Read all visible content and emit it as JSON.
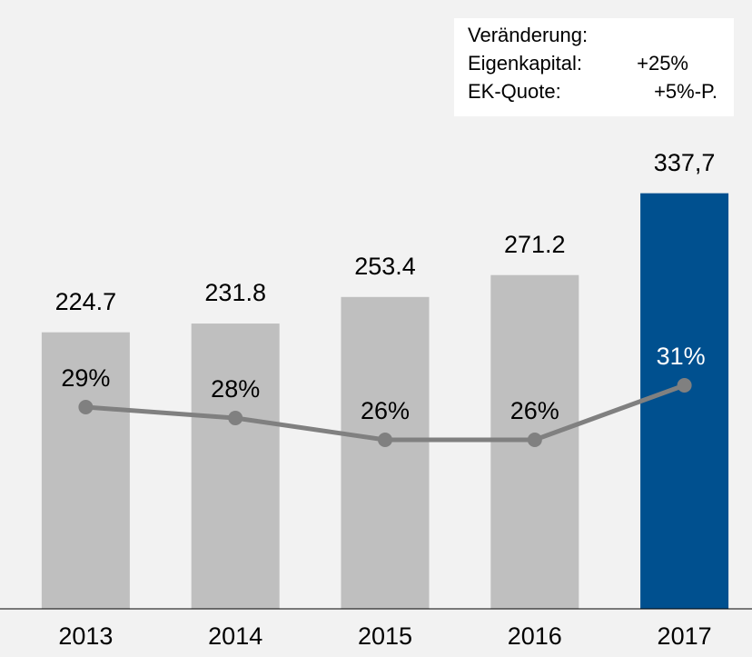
{
  "chart_data": {
    "type": "bar",
    "categories": [
      "2013",
      "2014",
      "2015",
      "2016",
      "2017"
    ],
    "values": [
      224.7,
      231.8,
      253.4,
      271.2,
      337.7
    ],
    "value_labels": [
      "224.7",
      "231.8",
      "253.4",
      "271.2",
      "337,7"
    ],
    "colors": [
      "#bfbfbf",
      "#bfbfbf",
      "#bfbfbf",
      "#bfbfbf",
      "#00508f"
    ],
    "ylim": [
      0,
      350
    ],
    "y2lim": [
      10.5,
      50
    ],
    "series": [
      {
        "type": "line",
        "axis": "y2",
        "color": "#808080",
        "values": [
          29,
          28,
          26,
          26,
          31
        ],
        "value_labels": [
          "29%",
          "28%",
          "26%",
          "26%",
          "31%"
        ]
      }
    ],
    "annotation": {
      "title": "Veränderung:",
      "rows": [
        [
          "Eigenkapital:",
          "+25%"
        ],
        [
          "EK-Quote:",
          "+5%-P."
        ]
      ]
    }
  }
}
